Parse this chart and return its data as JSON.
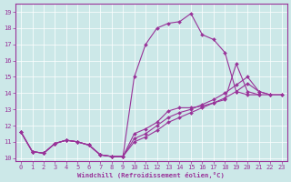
{
  "xlabel": "Windchill (Refroidissement éolien,°C)",
  "bg_color": "#cce8e8",
  "line_color": "#993399",
  "grid_color": "#ffffff",
  "xlim": [
    -0.5,
    23.5
  ],
  "ylim": [
    9.8,
    19.5
  ],
  "yticks": [
    10,
    11,
    12,
    13,
    14,
    15,
    16,
    17,
    18,
    19
  ],
  "xticks": [
    0,
    1,
    2,
    3,
    4,
    5,
    6,
    7,
    8,
    9,
    10,
    11,
    12,
    13,
    14,
    15,
    16,
    17,
    18,
    19,
    20,
    21,
    22,
    23
  ],
  "series": [
    {
      "x": [
        0,
        1,
        2,
        3,
        4,
        5,
        6,
        7,
        8,
        9,
        10,
        11,
        12,
        13,
        14,
        15,
        16,
        17,
        18,
        19,
        20,
        21,
        22,
        23
      ],
      "y": [
        11.6,
        10.4,
        10.3,
        10.9,
        11.1,
        11.0,
        10.8,
        10.2,
        10.1,
        10.1,
        15.0,
        17.0,
        18.0,
        18.3,
        18.4,
        18.9,
        17.6,
        17.3,
        16.5,
        14.1,
        13.9,
        13.9,
        null,
        null
      ]
    },
    {
      "x": [
        0,
        1,
        2,
        3,
        4,
        5,
        6,
        7,
        8,
        9,
        10,
        11,
        12,
        13,
        14,
        15,
        16,
        17,
        18,
        19,
        20,
        21,
        22,
        23
      ],
      "y": [
        11.6,
        10.4,
        10.3,
        10.9,
        11.1,
        11.0,
        10.8,
        10.2,
        10.1,
        10.1,
        11.5,
        11.8,
        12.2,
        12.9,
        13.1,
        13.1,
        13.2,
        13.4,
        13.6,
        15.8,
        14.1,
        13.9,
        13.9,
        null
      ]
    },
    {
      "x": [
        0,
        1,
        2,
        3,
        4,
        5,
        6,
        7,
        8,
        9,
        10,
        11,
        12,
        13,
        14,
        15,
        16,
        17,
        18,
        19,
        20,
        21,
        22,
        23
      ],
      "y": [
        11.6,
        10.4,
        10.3,
        10.9,
        11.1,
        11.0,
        10.8,
        10.2,
        10.1,
        10.1,
        11.2,
        11.5,
        12.0,
        12.5,
        12.8,
        13.0,
        13.3,
        13.6,
        14.0,
        14.5,
        15.0,
        14.1,
        13.9,
        13.9
      ]
    },
    {
      "x": [
        0,
        1,
        2,
        3,
        4,
        5,
        6,
        7,
        8,
        9,
        10,
        11,
        12,
        13,
        14,
        15,
        16,
        17,
        18,
        19,
        20,
        21,
        22,
        23
      ],
      "y": [
        11.6,
        10.4,
        10.3,
        10.9,
        11.1,
        11.0,
        10.8,
        10.2,
        10.1,
        10.1,
        11.0,
        11.3,
        11.7,
        12.2,
        12.5,
        12.8,
        13.1,
        13.4,
        13.7,
        14.1,
        14.6,
        14.1,
        13.9,
        13.9
      ]
    }
  ]
}
